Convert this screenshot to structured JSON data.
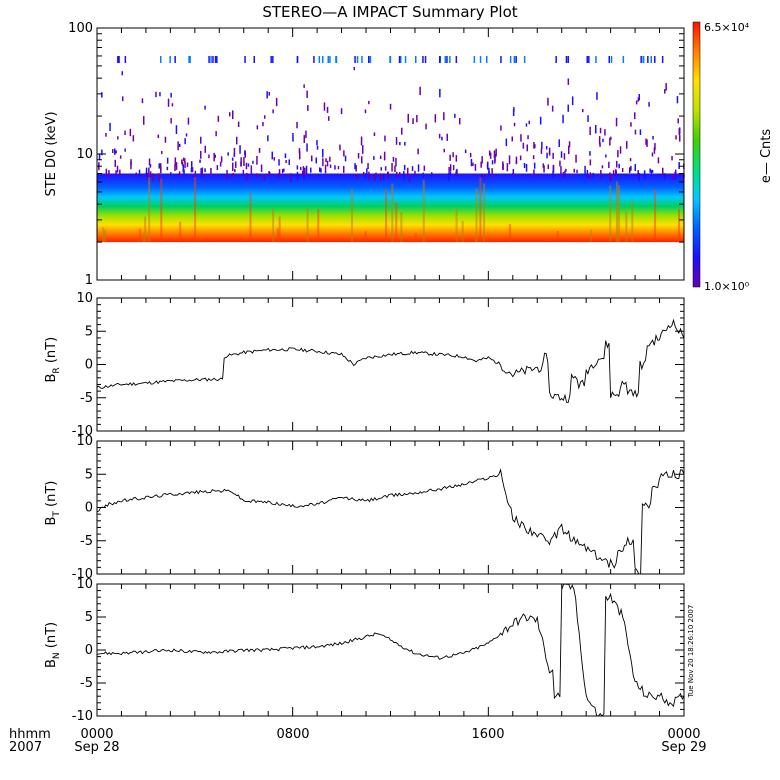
{
  "chart_data": {
    "type": "line",
    "title": "STEREO—A IMPACT Summary Plot",
    "x_axis": {
      "ticks": [
        "0000",
        "0800",
        "1600",
        "0000"
      ],
      "date_labels": [
        "Sep 28",
        "",
        "",
        "Sep 29"
      ],
      "row_label_top": "hhmm",
      "row_label_bottom": "2007",
      "range_hours": [
        0,
        24
      ]
    },
    "timestamp": "Tue Nov 20 18:26:10 2007",
    "panels": [
      {
        "name": "spectrogram",
        "type": "heatmap",
        "ylabel": "STE D0 (keV)",
        "yscale": "log",
        "ylim": [
          1,
          100
        ],
        "y_ticks": [
          "1",
          "10",
          "100"
        ],
        "colorbar": {
          "label": "e— Cnts",
          "max_label": "6.5×10⁴",
          "min_label": "1.0×10⁰",
          "colors": [
            "#6a00b0",
            "#1a10ff",
            "#0060ff",
            "#00c8ff",
            "#00e080",
            "#40d000",
            "#c0e000",
            "#ffe000",
            "#ff8000",
            "#ff1000"
          ]
        },
        "energy_range_keV": [
          2,
          100
        ],
        "hot_band_keV": [
          2,
          3
        ]
      },
      {
        "name": "BR",
        "ylabel_main": "B",
        "ylabel_sub": "R",
        "ylabel_unit": "(nT)",
        "ylim": [
          -10,
          10
        ],
        "y_ticks": [
          "10",
          "5",
          "0",
          "-5",
          "-10"
        ],
        "x": [
          0,
          1,
          2,
          3,
          4,
          5,
          5.2,
          6,
          7,
          8,
          9,
          10,
          10.5,
          11,
          12,
          13,
          14,
          15,
          15.5,
          16,
          16.5,
          17,
          17.5,
          18,
          18.3,
          18.5,
          19,
          19.4,
          19.7,
          20,
          20.5,
          20.8,
          21,
          21.4,
          21.7,
          22,
          22.2,
          22.5,
          23,
          23.5,
          24
        ],
        "values": [
          -3.5,
          -3,
          -2.8,
          -2.5,
          -2.3,
          -2.2,
          1.2,
          1.8,
          2.2,
          2.3,
          2,
          1.5,
          0,
          1,
          1.5,
          1.8,
          1.5,
          1.2,
          0.5,
          1,
          0,
          -1.5,
          -1,
          -0.5,
          1,
          -4.5,
          -5,
          -2,
          -3,
          -1,
          1,
          3,
          -4.5,
          -3,
          -4,
          -4.5,
          0,
          3,
          4,
          6.5,
          4
        ]
      },
      {
        "name": "BT",
        "ylabel_main": "B",
        "ylabel_sub": "T",
        "ylabel_unit": "(nT)",
        "ylim": [
          -10,
          10
        ],
        "y_ticks": [
          "10",
          "5",
          "0",
          "-5",
          "-10"
        ],
        "x": [
          0,
          0.5,
          1,
          2,
          3,
          4,
          5,
          5.5,
          6,
          7,
          8,
          9,
          10,
          11,
          12,
          13,
          14,
          15,
          15.5,
          16,
          16.5,
          17,
          17.5,
          18,
          18.5,
          19,
          19.5,
          20,
          20.5,
          21,
          21.3,
          21.7,
          22,
          22.3,
          22.7,
          23,
          23.5,
          24
        ],
        "values": [
          -0.5,
          0.5,
          1,
          1.5,
          2,
          2.3,
          2.5,
          2.5,
          1,
          0.8,
          0.2,
          0.5,
          1.5,
          1,
          1.8,
          2.2,
          2.8,
          3.5,
          4,
          4.5,
          5,
          -1.5,
          -3,
          -4,
          -5.5,
          -3,
          -5,
          -6,
          -7.5,
          -8.5,
          -6,
          -5,
          -9.5,
          0.5,
          3,
          4.5,
          5,
          5
        ]
      },
      {
        "name": "BN",
        "ylabel_main": "B",
        "ylabel_sub": "N",
        "ylabel_unit": "(nT)",
        "ylim": [
          -10,
          10
        ],
        "y_ticks": [
          "10",
          "5",
          "0",
          "-5",
          "-10"
        ],
        "x": [
          0,
          1,
          2,
          3,
          4,
          5,
          6,
          7,
          8,
          9,
          10,
          11,
          11.5,
          12,
          13,
          14,
          15,
          16,
          16.5,
          17,
          17.5,
          18,
          18.5,
          18.7,
          19,
          19.5,
          20,
          20.5,
          20.8,
          21,
          21.5,
          22,
          22.5,
          23,
          23.5,
          24
        ],
        "values": [
          -0.5,
          -0.5,
          -0.3,
          0,
          -0.3,
          -0.3,
          0,
          0,
          0.3,
          0.5,
          1,
          2,
          2.5,
          1.5,
          -0.5,
          -1.2,
          -0.5,
          1,
          2.5,
          4,
          5,
          4.5,
          -3,
          -7,
          9.5,
          9.5,
          -7,
          -10,
          8,
          8,
          5,
          -5,
          -7,
          -7,
          -8,
          -7
        ]
      }
    ]
  }
}
